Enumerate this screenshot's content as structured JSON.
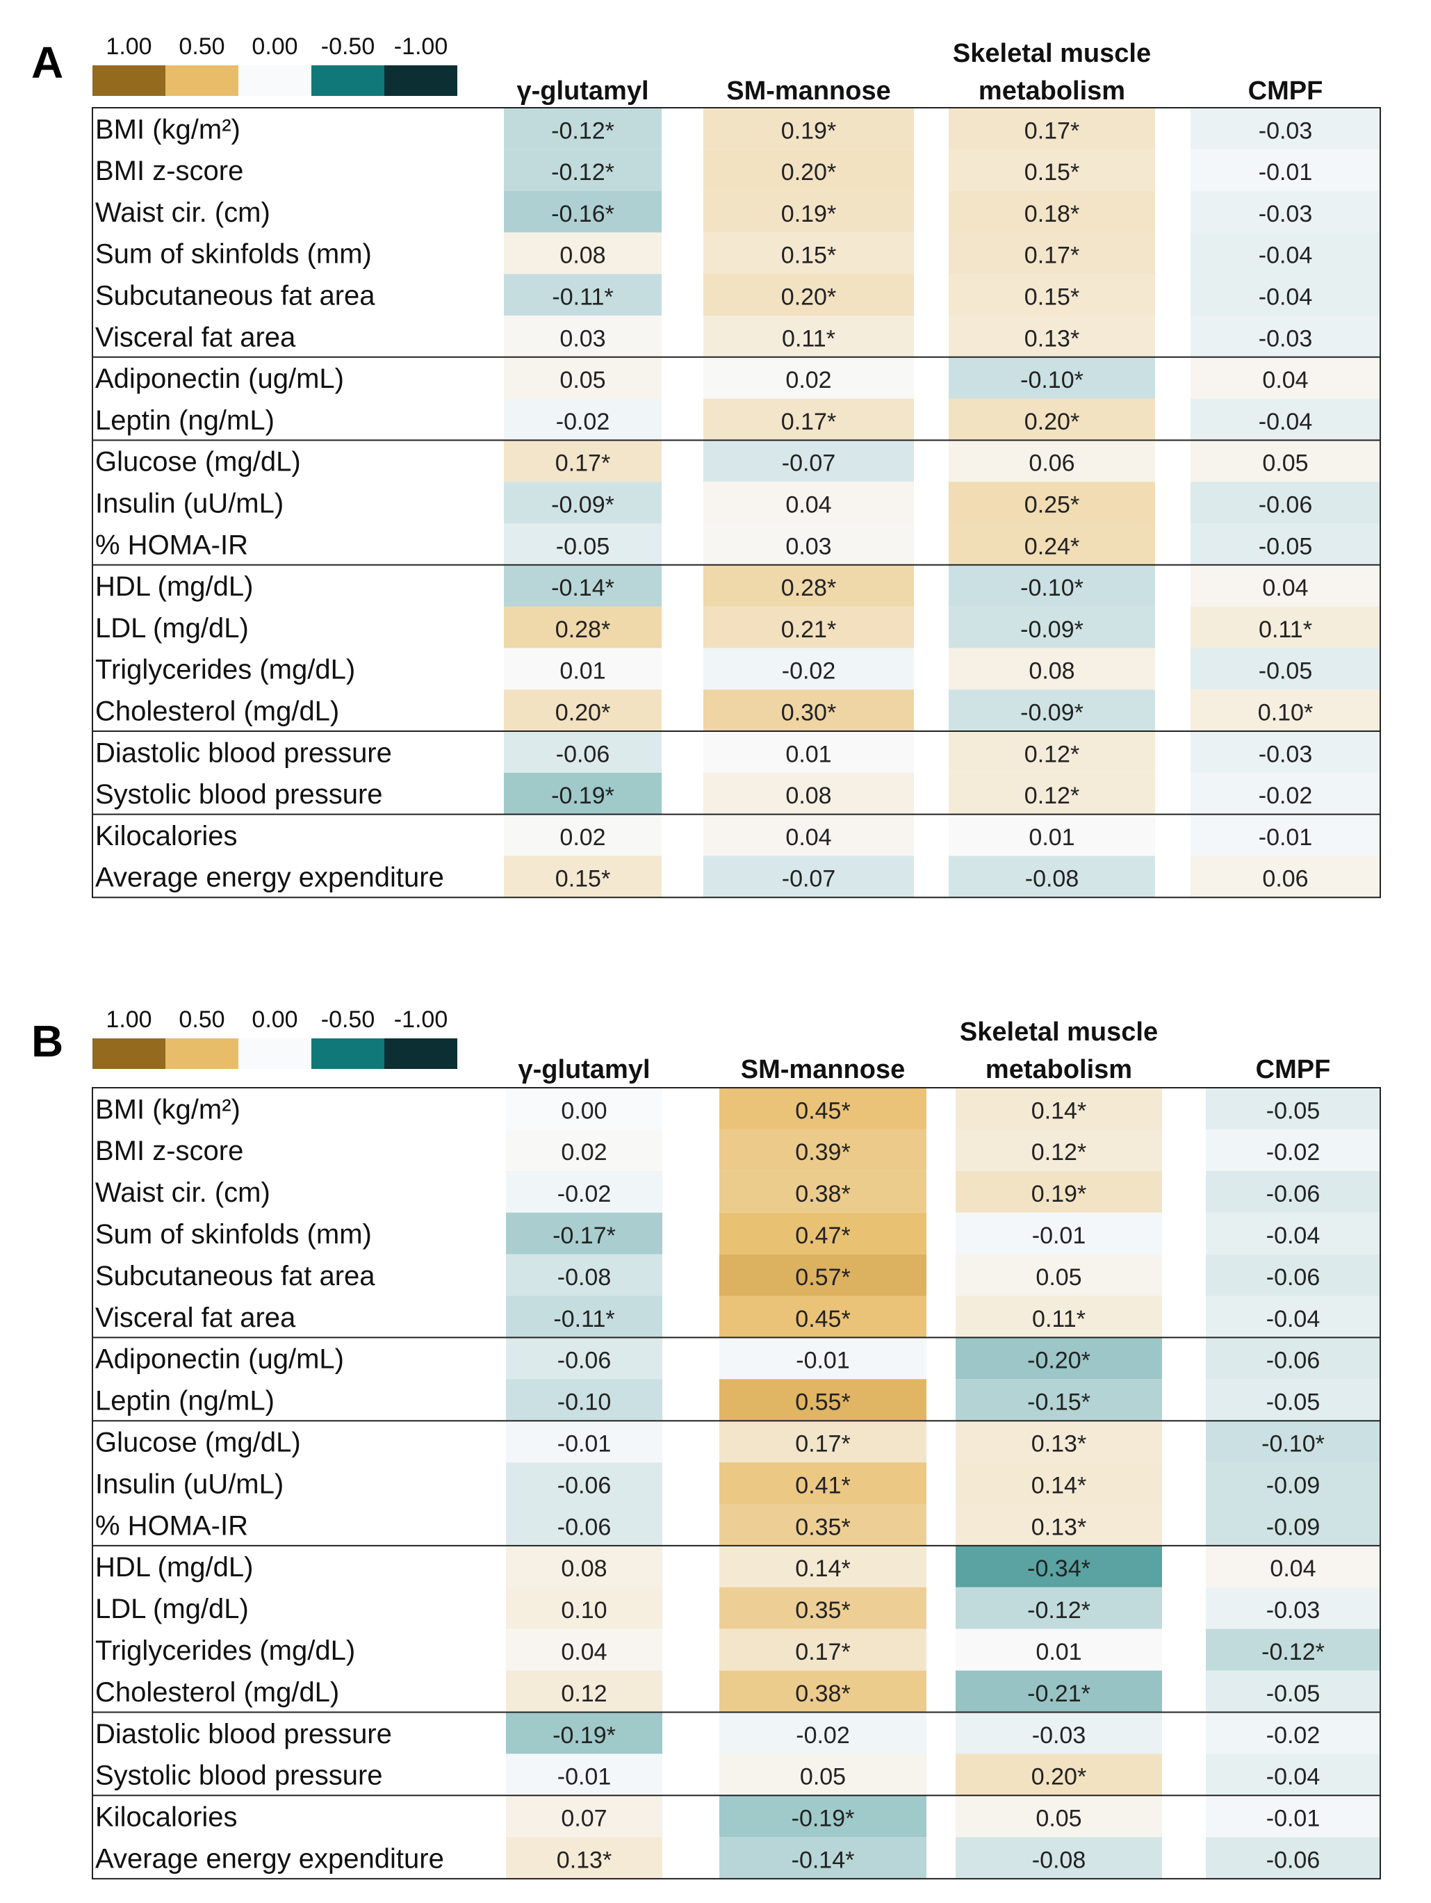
{
  "chart_data": [
    {
      "type": "heatmap",
      "panel_label": "A",
      "columns": [
        "γ-glutamyl",
        "SM-mannose",
        "Skeletal muscle metabolism",
        "CMPF"
      ],
      "rows": [
        "BMI (kg/m²)",
        "BMI z-score",
        "Waist cir. (cm)",
        "Sum of skinfolds (mm)",
        "Subcutaneous fat area",
        "Visceral fat area",
        "Adiponectin (ug/mL)",
        "Leptin (ng/mL)",
        "Glucose (mg/dL)",
        "Insulin (uU/mL)",
        "% HOMA-IR",
        "HDL (mg/dL)",
        "LDL (mg/dL)",
        "Triglycerides (mg/dL)",
        "Cholesterol (mg/dL)",
        "Diastolic blood pressure",
        "Systolic blood pressure",
        "Kilocalories",
        "Average energy expenditure"
      ],
      "values": [
        [
          "-0.12*",
          "0.19*",
          "0.17*",
          "-0.03"
        ],
        [
          "-0.12*",
          "0.20*",
          "0.15*",
          "-0.01"
        ],
        [
          "-0.16*",
          "0.19*",
          "0.18*",
          "-0.03"
        ],
        [
          "0.08",
          "0.15*",
          "0.17*",
          "-0.04"
        ],
        [
          "-0.11*",
          "0.20*",
          "0.15*",
          "-0.04"
        ],
        [
          "0.03",
          "0.11*",
          "0.13*",
          "-0.03"
        ],
        [
          "0.05",
          "0.02",
          "-0.10*",
          "0.04"
        ],
        [
          "-0.02",
          "0.17*",
          "0.20*",
          "-0.04"
        ],
        [
          "0.17*",
          "-0.07",
          "0.06",
          "0.05"
        ],
        [
          "-0.09*",
          "0.04",
          "0.25*",
          "-0.06"
        ],
        [
          "-0.05",
          "0.03",
          "0.24*",
          "-0.05"
        ],
        [
          "-0.14*",
          "0.28*",
          "-0.10*",
          "0.04"
        ],
        [
          "0.28*",
          "0.21*",
          "-0.09*",
          "0.11*"
        ],
        [
          "0.01",
          "-0.02",
          "0.08",
          "-0.05"
        ],
        [
          "0.20*",
          "0.30*",
          "-0.09*",
          "0.10*"
        ],
        [
          "-0.06",
          "0.01",
          "0.12*",
          "-0.03"
        ],
        [
          "-0.19*",
          "0.08",
          "0.12*",
          "-0.02"
        ],
        [
          "0.02",
          "0.04",
          "0.01",
          "-0.01"
        ],
        [
          "0.15*",
          "-0.07",
          "-0.08",
          "0.06"
        ]
      ],
      "group_breaks_after_row": [
        5,
        7,
        10,
        14,
        16
      ],
      "color_scale": {
        "ticks": [
          "1.00",
          "0.50",
          "0.00",
          "-0.50",
          "-1.00"
        ],
        "colors": [
          "#946a1f",
          "#e8bd6a",
          "#f9fafc",
          "#107878",
          "#0b2f33"
        ]
      }
    },
    {
      "type": "heatmap",
      "panel_label": "B",
      "columns": [
        "γ-glutamyl",
        "SM-mannose",
        "Skeletal muscle metabolism",
        "CMPF"
      ],
      "rows": [
        "BMI (kg/m²)",
        "BMI z-score",
        "Waist cir. (cm)",
        "Sum of skinfolds (mm)",
        "Subcutaneous fat area",
        "Visceral fat area",
        "Adiponectin (ug/mL)",
        "Leptin (ng/mL)",
        "Glucose (mg/dL)",
        "Insulin (uU/mL)",
        "% HOMA-IR",
        "HDL (mg/dL)",
        "LDL (mg/dL)",
        "Triglycerides (mg/dL)",
        "Cholesterol (mg/dL)",
        "Diastolic blood pressure",
        "Systolic blood pressure",
        "Kilocalories",
        "Average energy expenditure"
      ],
      "values": [
        [
          "0.00",
          "0.45*",
          "0.14*",
          "-0.05"
        ],
        [
          "0.02",
          "0.39*",
          "0.12*",
          "-0.02"
        ],
        [
          "-0.02",
          "0.38*",
          "0.19*",
          "-0.06"
        ],
        [
          "-0.17*",
          "0.47*",
          "-0.01",
          "-0.04"
        ],
        [
          "-0.08",
          "0.57*",
          "0.05",
          "-0.06"
        ],
        [
          "-0.11*",
          "0.45*",
          "0.11*",
          "-0.04"
        ],
        [
          "-0.06",
          "-0.01",
          "-0.20*",
          "-0.06"
        ],
        [
          "-0.10",
          "0.55*",
          "-0.15*",
          "-0.05"
        ],
        [
          "-0.01",
          "0.17*",
          "0.13*",
          "-0.10*"
        ],
        [
          "-0.06",
          "0.41*",
          "0.14*",
          "-0.09"
        ],
        [
          "-0.06",
          "0.35*",
          "0.13*",
          "-0.09"
        ],
        [
          "0.08",
          "0.14*",
          "-0.34*",
          "0.04"
        ],
        [
          "0.10",
          "0.35*",
          "-0.12*",
          "-0.03"
        ],
        [
          "0.04",
          "0.17*",
          "0.01",
          "-0.12*"
        ],
        [
          "0.12",
          "0.38*",
          "-0.21*",
          "-0.05"
        ],
        [
          "-0.19*",
          "-0.02",
          "-0.03",
          "-0.02"
        ],
        [
          "-0.01",
          "0.05",
          "0.20*",
          "-0.04"
        ],
        [
          "0.07",
          "-0.19*",
          "0.05",
          "-0.01"
        ],
        [
          "0.13*",
          "-0.14*",
          "-0.08",
          "-0.06"
        ]
      ],
      "group_breaks_after_row": [
        5,
        7,
        10,
        14,
        16
      ],
      "color_scale": {
        "ticks": [
          "1.00",
          "0.50",
          "0.00",
          "-0.50",
          "-1.00"
        ],
        "colors": [
          "#946a1f",
          "#e8bd6a",
          "#f9fafc",
          "#107878",
          "#0b2f33"
        ]
      }
    }
  ]
}
